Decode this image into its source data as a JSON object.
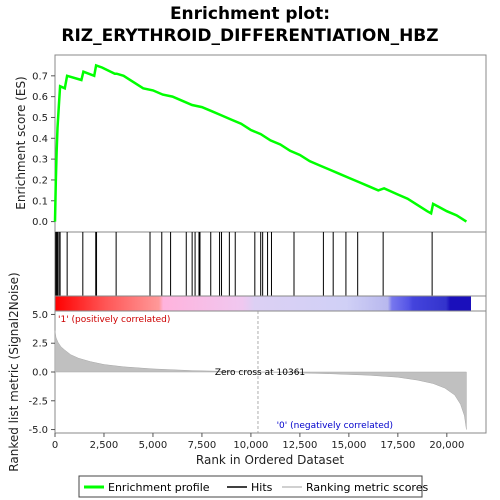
{
  "chart_data": {
    "type": "line",
    "title_line1": "Enrichment plot:",
    "title_line2": "RIZ_ERYTHROID_DIFFERENTIATION_HBZ",
    "top_panel": {
      "ylabel": "Enrichment score (ES)",
      "ylim": [
        -0.05,
        0.8
      ],
      "yticks": [
        "0.0",
        "0.1",
        "0.2",
        "0.3",
        "0.4",
        "0.5",
        "0.6",
        "0.7"
      ],
      "series_name": "Enrichment profile",
      "color": "#00ff00",
      "es_curve": [
        [
          0,
          0.0
        ],
        [
          40,
          0.19
        ],
        [
          80,
          0.33
        ],
        [
          130,
          0.45
        ],
        [
          200,
          0.56
        ],
        [
          260,
          0.65
        ],
        [
          500,
          0.64
        ],
        [
          620,
          0.7
        ],
        [
          1350,
          0.68
        ],
        [
          1450,
          0.72
        ],
        [
          2000,
          0.7
        ],
        [
          2100,
          0.75
        ],
        [
          2400,
          0.74
        ],
        [
          3050,
          0.71
        ],
        [
          3150,
          0.71
        ],
        [
          3500,
          0.7
        ],
        [
          4000,
          0.67
        ],
        [
          4500,
          0.64
        ],
        [
          5000,
          0.63
        ],
        [
          5500,
          0.61
        ],
        [
          6000,
          0.6
        ],
        [
          6500,
          0.58
        ],
        [
          7000,
          0.56
        ],
        [
          7500,
          0.55
        ],
        [
          8000,
          0.53
        ],
        [
          8500,
          0.51
        ],
        [
          9000,
          0.49
        ],
        [
          9500,
          0.47
        ],
        [
          10000,
          0.44
        ],
        [
          10500,
          0.42
        ],
        [
          11000,
          0.39
        ],
        [
          11500,
          0.37
        ],
        [
          12000,
          0.34
        ],
        [
          12500,
          0.32
        ],
        [
          13000,
          0.29
        ],
        [
          13500,
          0.27
        ],
        [
          14000,
          0.25
        ],
        [
          14500,
          0.23
        ],
        [
          15000,
          0.21
        ],
        [
          15500,
          0.19
        ],
        [
          16000,
          0.17
        ],
        [
          16500,
          0.15
        ],
        [
          16800,
          0.16
        ],
        [
          17500,
          0.13
        ],
        [
          18000,
          0.11
        ],
        [
          18500,
          0.08
        ],
        [
          19000,
          0.05
        ],
        [
          19200,
          0.04
        ],
        [
          19300,
          0.085
        ],
        [
          19600,
          0.07
        ],
        [
          20000,
          0.05
        ],
        [
          20500,
          0.03
        ],
        [
          21000,
          0.0
        ]
      ]
    },
    "hits_panel": {
      "hit_ranks": [
        40,
        80,
        130,
        200,
        260,
        620,
        1420,
        2080,
        2120,
        3120,
        4850,
        5450,
        5900,
        6700,
        7000,
        7150,
        7350,
        7400,
        7950,
        8400,
        8500,
        8900,
        9200,
        10200,
        10500,
        10600,
        10850,
        11050,
        12200,
        13700,
        14200,
        14850,
        15450,
        16750,
        19250
      ]
    },
    "heatmap_bar": {
      "colors": [
        "#ff0000",
        "#ff6666",
        "#ff9999",
        "#ffb3d9",
        "#e0c0f0",
        "#d8d8f8",
        "#c8c8f0",
        "#7777ee",
        "#3333dd",
        "#1a0fbb"
      ]
    },
    "bottom_panel": {
      "ylabel": "Ranked list metric (Signal2Noise)",
      "ylim": [
        -5.3,
        5.3
      ],
      "yticks": [
        "5.0",
        "2.5",
        "0.0",
        "-2.5",
        "-5.0"
      ],
      "xlabel": "Rank in Ordered Dataset",
      "xlim": [
        0,
        22000
      ],
      "xticks": [
        "0",
        "2,500",
        "5,000",
        "7,500",
        "10,000",
        "12,500",
        "15,000",
        "17,500",
        "20,000"
      ],
      "metric_curve": [
        [
          0,
          3.6
        ],
        [
          50,
          3.0
        ],
        [
          150,
          2.6
        ],
        [
          300,
          2.2
        ],
        [
          500,
          1.9
        ],
        [
          800,
          1.5
        ],
        [
          1200,
          1.2
        ],
        [
          1800,
          0.9
        ],
        [
          2500,
          0.65
        ],
        [
          3500,
          0.45
        ],
        [
          5000,
          0.27
        ],
        [
          7000,
          0.12
        ],
        [
          9000,
          0.04
        ],
        [
          10361,
          0.0
        ],
        [
          12000,
          -0.06
        ],
        [
          14000,
          -0.15
        ],
        [
          16000,
          -0.28
        ],
        [
          17500,
          -0.45
        ],
        [
          18500,
          -0.7
        ],
        [
          19300,
          -1.0
        ],
        [
          19900,
          -1.4
        ],
        [
          20400,
          -2.0
        ],
        [
          20700,
          -2.8
        ],
        [
          20900,
          -3.8
        ],
        [
          21000,
          -5.0
        ]
      ],
      "zero_cross_rank": 10361,
      "zero_cross_label": "Zero cross at 10361",
      "pos_label": "'1' (positively correlated)",
      "neg_label": "'0' (negatively correlated)",
      "pos_color": "#cc0000",
      "neg_color": "#0000cc"
    },
    "legend": {
      "items": [
        {
          "label": "Enrichment profile",
          "color": "#00ff00"
        },
        {
          "label": "Hits",
          "color": "#000000"
        },
        {
          "label": "Ranking metric scores",
          "color": "#c0c0c0"
        }
      ]
    }
  }
}
